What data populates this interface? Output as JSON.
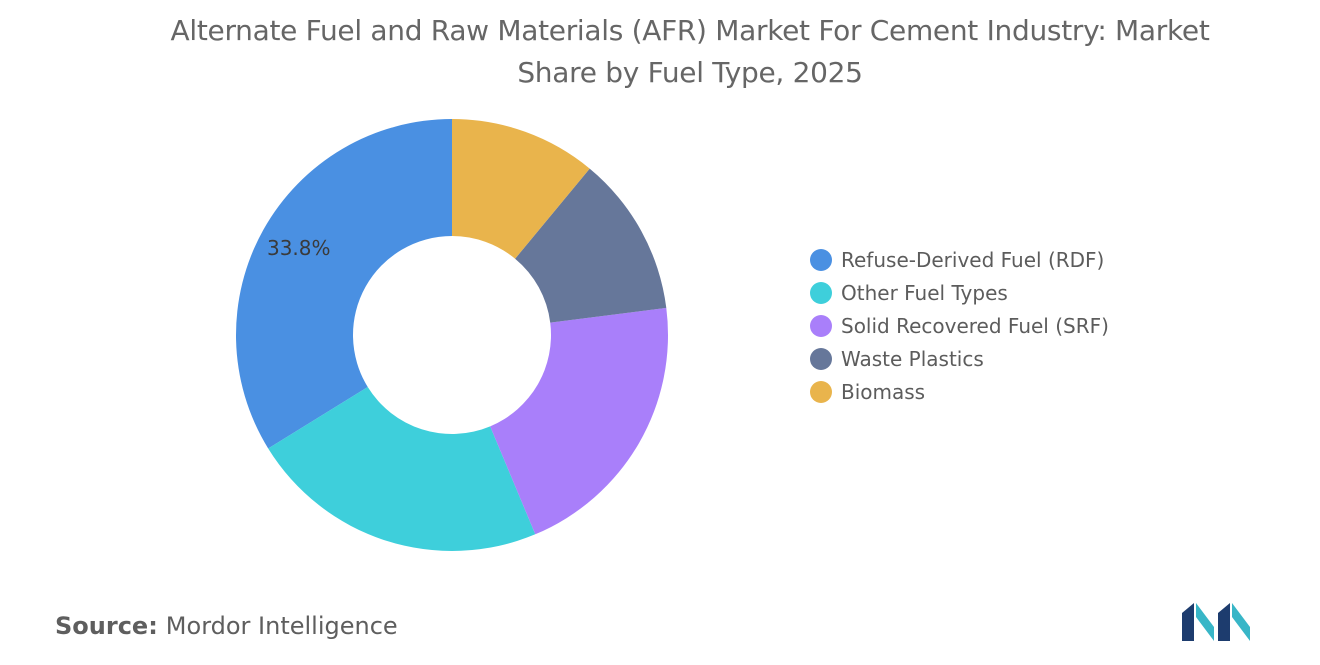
{
  "title": "Alternate Fuel and Raw Materials (AFR) Market For Cement Industry: Market Share by Fuel Type, 2025",
  "chart_data": {
    "type": "pie",
    "style": "donut",
    "categories": [
      "Refuse-Derived Fuel (RDF)",
      "Other Fuel Types",
      "Solid Recovered Fuel (SRF)",
      "Waste Plastics",
      "Biomass"
    ],
    "values": [
      33.8,
      22.5,
      20.7,
      12.0,
      11.0
    ],
    "colors": [
      "#4a90e2",
      "#3ecfdb",
      "#a97ffa",
      "#66779a",
      "#e9b44c"
    ],
    "data_labels": [
      "33.8%",
      "",
      "",
      "",
      ""
    ],
    "legend_position": "right"
  },
  "source": {
    "label": "Source:",
    "value": "Mordor Intelligence"
  },
  "logo": {
    "icon": "mordor-intelligence-logo",
    "colors": [
      "#1d3c6e",
      "#38b6c7"
    ]
  }
}
